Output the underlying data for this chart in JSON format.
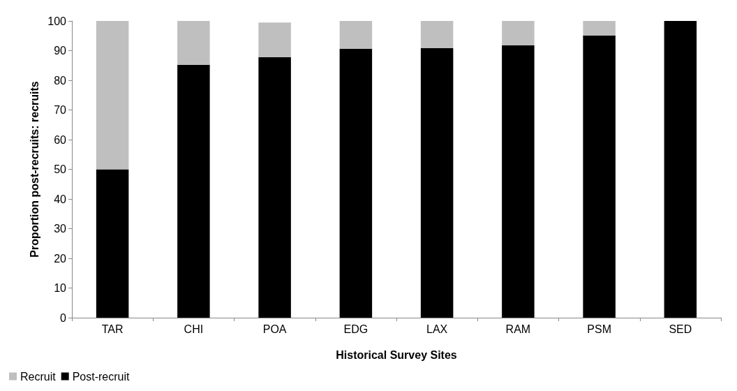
{
  "chart_data": {
    "type": "bar",
    "stacked": true,
    "xlabel": "Historical Survey Sites",
    "ylabel": "Proportion post-recruits: recruits",
    "categories": [
      "TAR",
      "CHI",
      "POA",
      "EDG",
      "LAX",
      "RAM",
      "PSM",
      "SED"
    ],
    "series": [
      {
        "name": "Post-recruit",
        "color": "#000000",
        "values": [
          50,
          85.2,
          87.8,
          90.6,
          90.9,
          91.8,
          95.1,
          100
        ]
      },
      {
        "name": "Recruit",
        "color": "#bfbfbf",
        "values": [
          50,
          14.8,
          11.7,
          9.4,
          9.1,
          8.2,
          4.9,
          0
        ]
      }
    ],
    "ylim": [
      0,
      100
    ],
    "yticks": [
      0,
      10,
      20,
      30,
      40,
      50,
      60,
      70,
      80,
      90,
      100
    ],
    "grid": false,
    "legend": "bottom left"
  }
}
